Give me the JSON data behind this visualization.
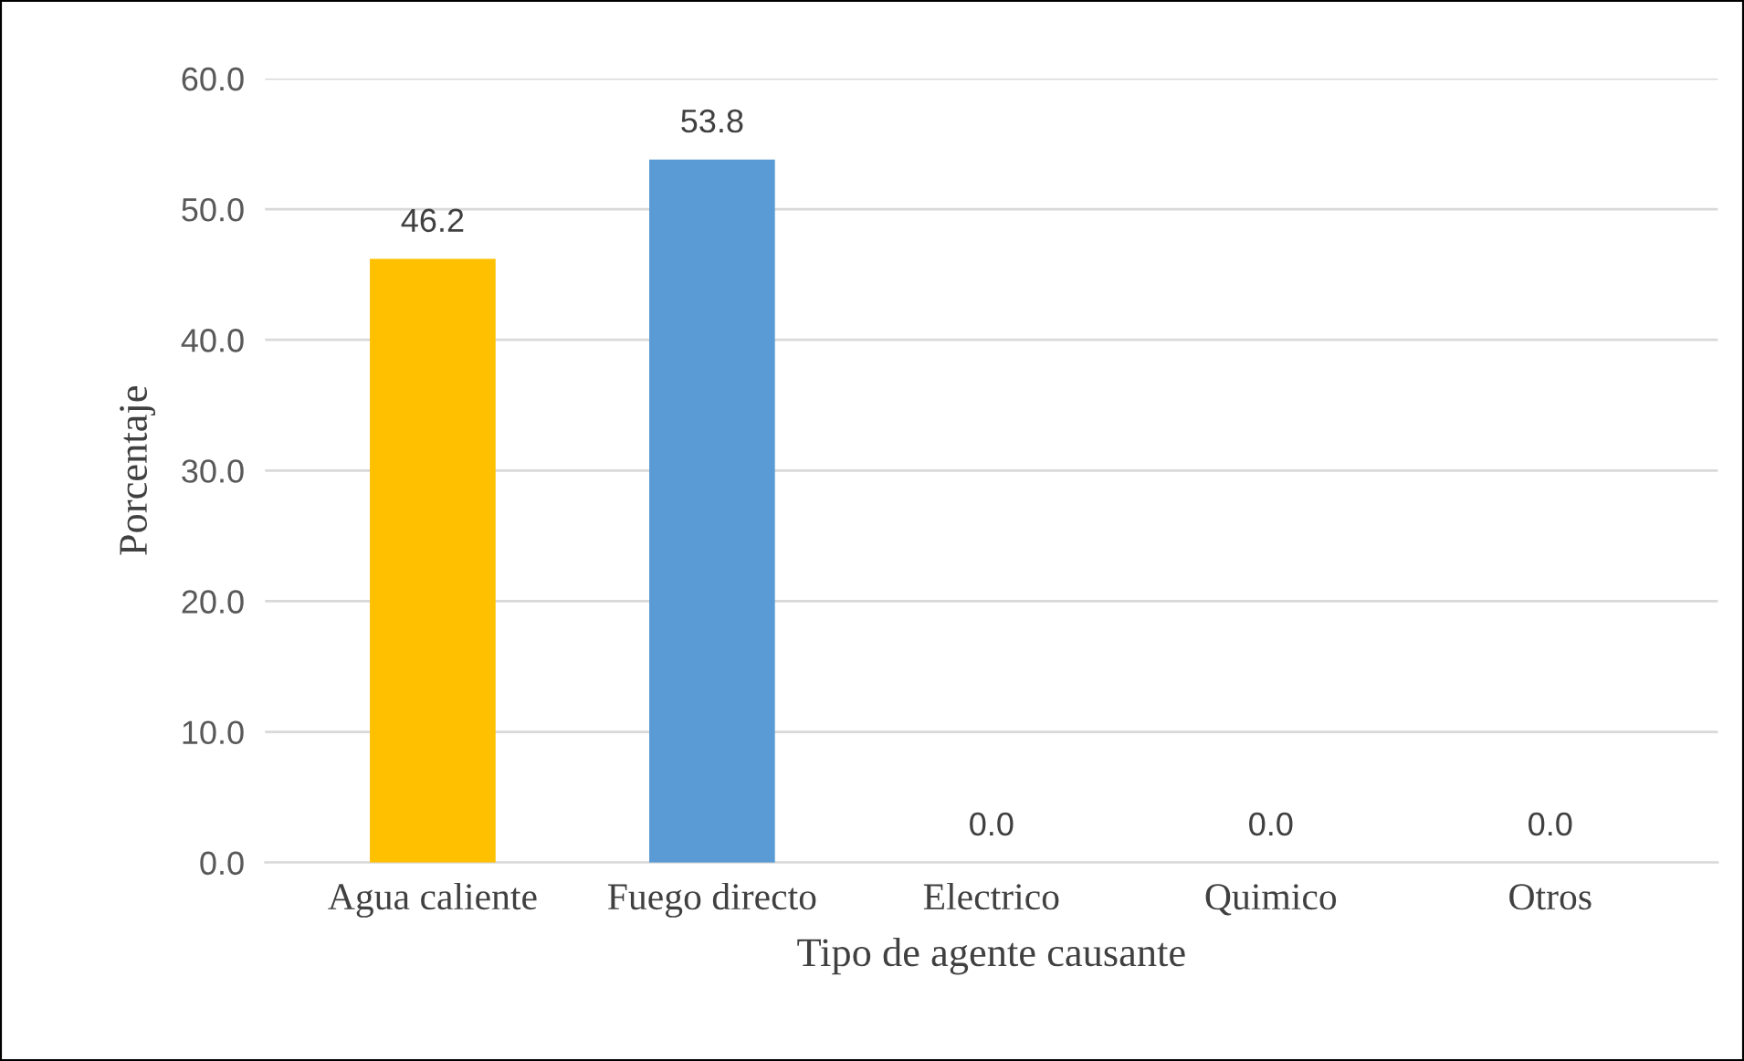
{
  "chart_data": {
    "type": "bar",
    "xlabel": "Tipo de agente causante",
    "ylabel": "Porcentaje",
    "categories": [
      "Agua caliente",
      "Fuego directo",
      "Electrico",
      "Quimico",
      "Otros"
    ],
    "values": [
      46.2,
      53.8,
      0,
      0,
      0
    ],
    "colors": [
      "#ffc000",
      "#5b9bd5",
      "#5b9bd5",
      "#5b9bd5",
      "#5b9bd5"
    ],
    "value_labels": [
      "46.2",
      "53.8",
      "0.0",
      "0.0",
      "0.0"
    ],
    "ylim": [
      0,
      60
    ],
    "yticks": [
      {
        "value": 0,
        "label": "0.0"
      },
      {
        "value": 10,
        "label": "10.0"
      },
      {
        "value": 20,
        "label": "20.0"
      },
      {
        "value": 30,
        "label": "30.0"
      },
      {
        "value": 40,
        "label": "40.0"
      },
      {
        "value": 50,
        "label": "50.0"
      },
      {
        "value": 60,
        "label": "60.0"
      }
    ],
    "grid": "y"
  }
}
